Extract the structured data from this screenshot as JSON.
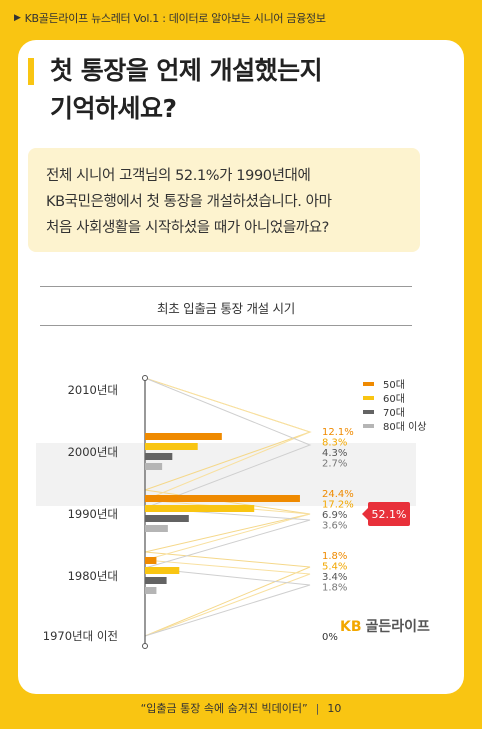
{
  "header": {
    "newsletter": "KB골든라이프 뉴스레터 Vol.1 : 데이터로 알아보는 시니어 금융정보"
  },
  "title": {
    "line1": "첫 통장을 언제 개설했는지",
    "line2": "기억하세요?"
  },
  "summary": {
    "line1": "전체 시니어 고객님의 52.1%가 1990년대에",
    "line2": "KB국민은행에서 첫 통장을 개설하셨습니다. 아마",
    "line3": "처음 사회생활을 시작하셨을 때가 아니었을까요?"
  },
  "chart_data": {
    "type": "bar",
    "orientation": "horizontal",
    "title": "최초 입출금 통장 개설 시기",
    "categories": [
      "2010년대",
      "2000년대",
      "1990년대",
      "1980년대",
      "1970년대 이전"
    ],
    "series": [
      {
        "name": "50대",
        "color": "#ef8a00",
        "values": [
          0,
          12.1,
          24.4,
          1.8,
          0
        ]
      },
      {
        "name": "60대",
        "color": "#f9c512",
        "values": [
          0,
          8.3,
          17.2,
          5.4,
          0
        ]
      },
      {
        "name": "70대",
        "color": "#636363",
        "values": [
          0,
          4.3,
          6.9,
          3.4,
          0
        ]
      },
      {
        "name": "80대 이상",
        "color": "#b5b5b5",
        "values": [
          0,
          2.7,
          3.6,
          1.8,
          0
        ]
      }
    ],
    "value_labels": [
      [],
      [
        "12.1%",
        "8.3%",
        "4.3%",
        "2.7%"
      ],
      [
        "24.4%",
        "17.2%",
        "6.9%",
        "3.6%"
      ],
      [
        "1.8%",
        "5.4%",
        "3.4%",
        "1.8%"
      ],
      [
        "0%"
      ]
    ],
    "callout": {
      "category": "1990년대",
      "text": "52.1%"
    },
    "legend_position": "top-right",
    "xlim": [
      0,
      30
    ]
  },
  "footer": {
    "quote": "“입출금 통장 속에 숨겨진 빅데이터”",
    "separator": "|",
    "page": "10"
  },
  "logo": {
    "kb": "KB",
    "name": "골든라이프"
  }
}
